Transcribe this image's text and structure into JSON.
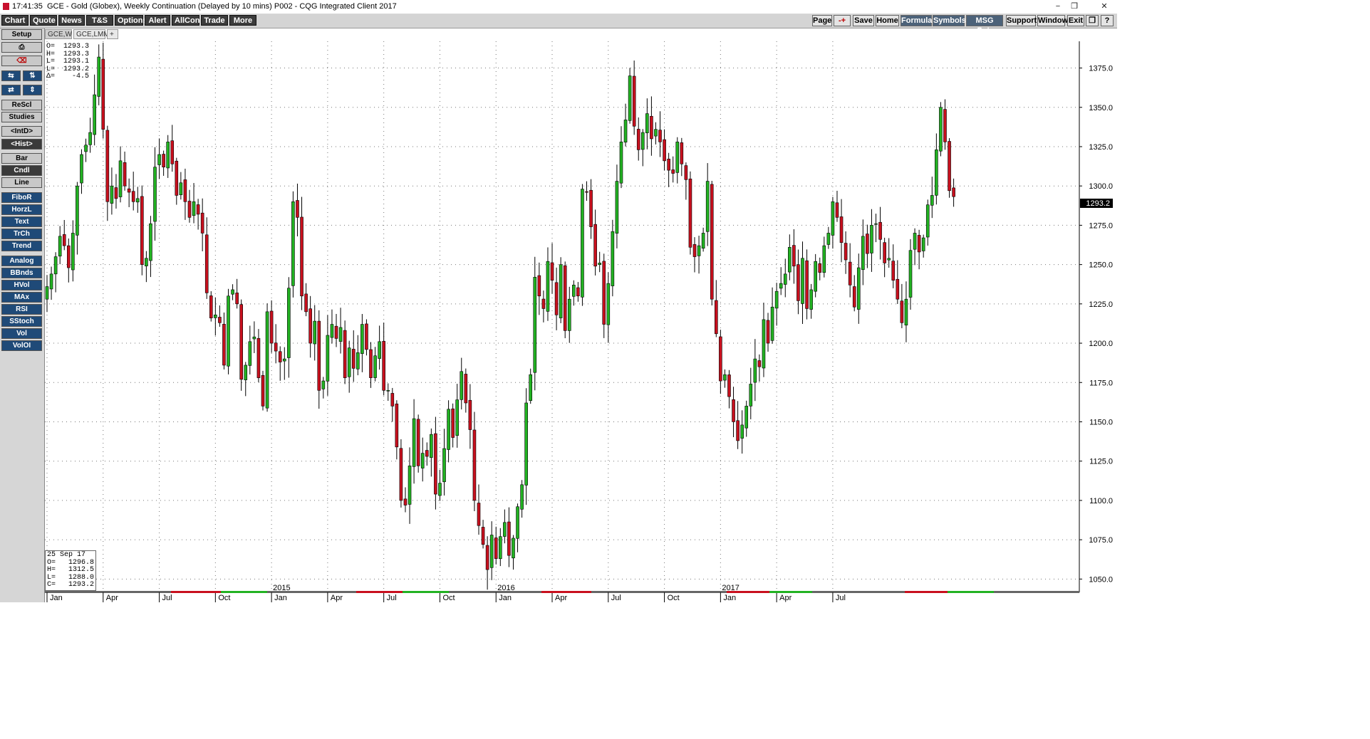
{
  "window": {
    "time": "17:41:35",
    "title": "GCE - Gold (Globex), Weekly Continuation (Delayed by 10 mins)  P002 - CQG Integrated Client 2017",
    "controls": [
      "−",
      "❒",
      "✕"
    ]
  },
  "menu": {
    "left": [
      "Chart",
      "Quote",
      "News",
      "T&S",
      "Options",
      "Alert",
      "AllCon",
      "Trade",
      "More"
    ],
    "right": [
      "Page",
      "-+",
      "Save",
      "Home",
      "Formula",
      "Symbols",
      "MSG Cntr",
      "Support",
      "Window",
      "Exit",
      "❒",
      "?"
    ]
  },
  "toolbar": {
    "setup": "Setup",
    "rescl": "ReScl",
    "studies": "Studies",
    "intd": "<IntD>",
    "hist": "<Hist>",
    "bar": "Bar",
    "cndl": "Cndl",
    "line": "Line",
    "tools": [
      "FiboR",
      "HorzL",
      "Text",
      "TrCh",
      "Trend"
    ],
    "studies_list": [
      "Analog",
      "BBnds",
      "HVol",
      "MAx",
      "RSI",
      "SStoch",
      "Vol",
      "VolOI"
    ]
  },
  "tabs": [
    "GCE,W",
    "GCE,LMM",
    "+"
  ],
  "info_top": {
    "lines": [
      "O=  1293.3",
      "H=  1293.3",
      "L=  1293.1",
      "L=  1293.2",
      "Δ=    -4.5"
    ]
  },
  "info_bottom": {
    "lines": [
      "25 Sep 17",
      "O=   1296.8",
      "H=   1312.5",
      "L=   1288.0",
      "C=   1293.2"
    ]
  },
  "price_tag": "1293.2",
  "colors": {
    "up": "#22b222",
    "down": "#c8101e",
    "grid": "#777777",
    "tag_bg": "#000000"
  },
  "chart_data": {
    "type": "candlestick",
    "ylim": [
      1042,
      1392
    ],
    "y_ticks": [
      1050,
      1075,
      1100,
      1125,
      1150,
      1175,
      1200,
      1225,
      1250,
      1275,
      1300,
      1325,
      1350,
      1375
    ],
    "y_tick_labels": [
      "1050.0",
      "1075.0",
      "1100.0",
      "1125.0",
      "1150.0",
      "1175.0",
      "1200.0",
      "1225.0",
      "1250.0",
      "1275.0",
      "1300.0",
      "1325.0",
      "1350.0",
      "1375.0"
    ],
    "x_month_labels": [
      "Jan",
      "Apr",
      "Jul",
      "Oct",
      "Jan",
      "Apr",
      "Jul",
      "Oct",
      "Jan",
      "Apr",
      "Jul",
      "Oct",
      "Jan",
      "Apr",
      "Jul"
    ],
    "x_month_weeks": [
      0,
      13,
      26,
      39,
      52,
      65,
      78,
      91,
      104,
      117,
      130,
      143,
      156,
      169,
      182
    ],
    "x_year_labels": [
      "2015",
      "2016",
      "2017"
    ],
    "x_year_weeks": [
      52,
      104,
      156
    ],
    "last_price": 1293.2,
    "weekly_closes": [
      1236,
      1244,
      1255,
      1268,
      1262,
      1248,
      1270,
      1300,
      1320,
      1326,
      1334,
      1358,
      1382,
      1336,
      1290,
      1300,
      1292,
      1316,
      1300,
      1296,
      1290,
      1292,
      1250,
      1254,
      1276,
      1312,
      1320,
      1312,
      1328,
      1314,
      1294,
      1302,
      1290,
      1280,
      1290,
      1282,
      1270,
      1232,
      1216,
      1218,
      1213,
      1186,
      1230,
      1234,
      1225,
      1177,
      1186,
      1201,
      1204,
      1178,
      1160,
      1220,
      1200,
      1195,
      1188,
      1190,
      1235,
      1290,
      1280,
      1230,
      1220,
      1200,
      1214,
      1170,
      1176,
      1205,
      1212,
      1203,
      1210,
      1178,
      1197,
      1184,
      1194,
      1212,
      1196,
      1178,
      1192,
      1201,
      1170,
      1170,
      1160,
      1134,
      1100,
      1097,
      1122,
      1152,
      1122,
      1130,
      1128,
      1142,
      1104,
      1111,
      1133,
      1158,
      1140,
      1164,
      1182,
      1162,
      1145,
      1100,
      1084,
      1072,
      1056,
      1078,
      1063,
      1077,
      1086,
      1065,
      1076,
      1096,
      1110,
      1162,
      1180,
      1242,
      1230,
      1222,
      1252,
      1240,
      1218,
      1250,
      1208,
      1228,
      1237,
      1230,
      1298,
      1296,
      1274,
      1249,
      1251,
      1212,
      1238,
      1271,
      1303,
      1328,
      1342,
      1370,
      1338,
      1323,
      1334,
      1346,
      1330,
      1336,
      1328,
      1316,
      1310,
      1308,
      1328,
      1314,
      1304,
      1261,
      1255,
      1262,
      1270,
      1303,
      1228,
      1206,
      1176,
      1180,
      1166,
      1150,
      1138,
      1148,
      1160,
      1174,
      1190,
      1185,
      1215,
      1200,
      1223,
      1233,
      1238,
      1244,
      1261,
      1249,
      1227,
      1254,
      1222,
      1234,
      1252,
      1245,
      1262,
      1270,
      1290,
      1280,
      1264,
      1253,
      1237,
      1223,
      1248,
      1268,
      1257,
      1275,
      1276,
      1266,
      1251,
      1254,
      1240,
      1228,
      1213,
      1228,
      1259,
      1270,
      1258,
      1267,
      1288,
      1294,
      1323,
      1350,
      1328,
      1297,
      1293.2
    ],
    "series": [
      {
        "name": "GCE,W"
      }
    ]
  }
}
